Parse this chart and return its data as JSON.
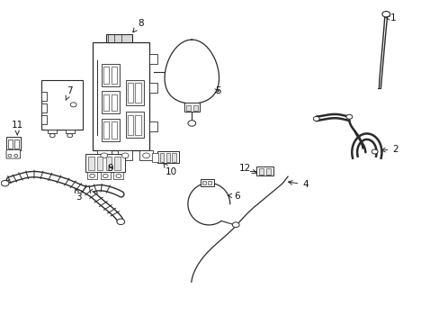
{
  "bg_color": "#ffffff",
  "line_color": "#2a2a2a",
  "text_color": "#111111",
  "fig_width": 4.89,
  "fig_height": 3.6,
  "dpi": 100,
  "label_positions": {
    "1": [
      0.895,
      0.945,
      0.878,
      0.94
    ],
    "2": [
      0.9,
      0.54,
      0.882,
      0.535
    ],
    "3": [
      0.178,
      0.39,
      0.155,
      0.415
    ],
    "4": [
      0.695,
      0.43,
      0.67,
      0.435
    ],
    "5": [
      0.495,
      0.72,
      0.515,
      0.72
    ],
    "6": [
      0.54,
      0.395,
      0.525,
      0.395
    ],
    "7": [
      0.158,
      0.72,
      0.148,
      0.695
    ],
    "8": [
      0.32,
      0.93,
      0.308,
      0.905
    ],
    "9": [
      0.25,
      0.48,
      0.248,
      0.503
    ],
    "10": [
      0.388,
      0.47,
      0.375,
      0.495
    ],
    "11": [
      0.038,
      0.615,
      0.038,
      0.595
    ],
    "12": [
      0.558,
      0.48,
      0.58,
      0.468
    ]
  }
}
